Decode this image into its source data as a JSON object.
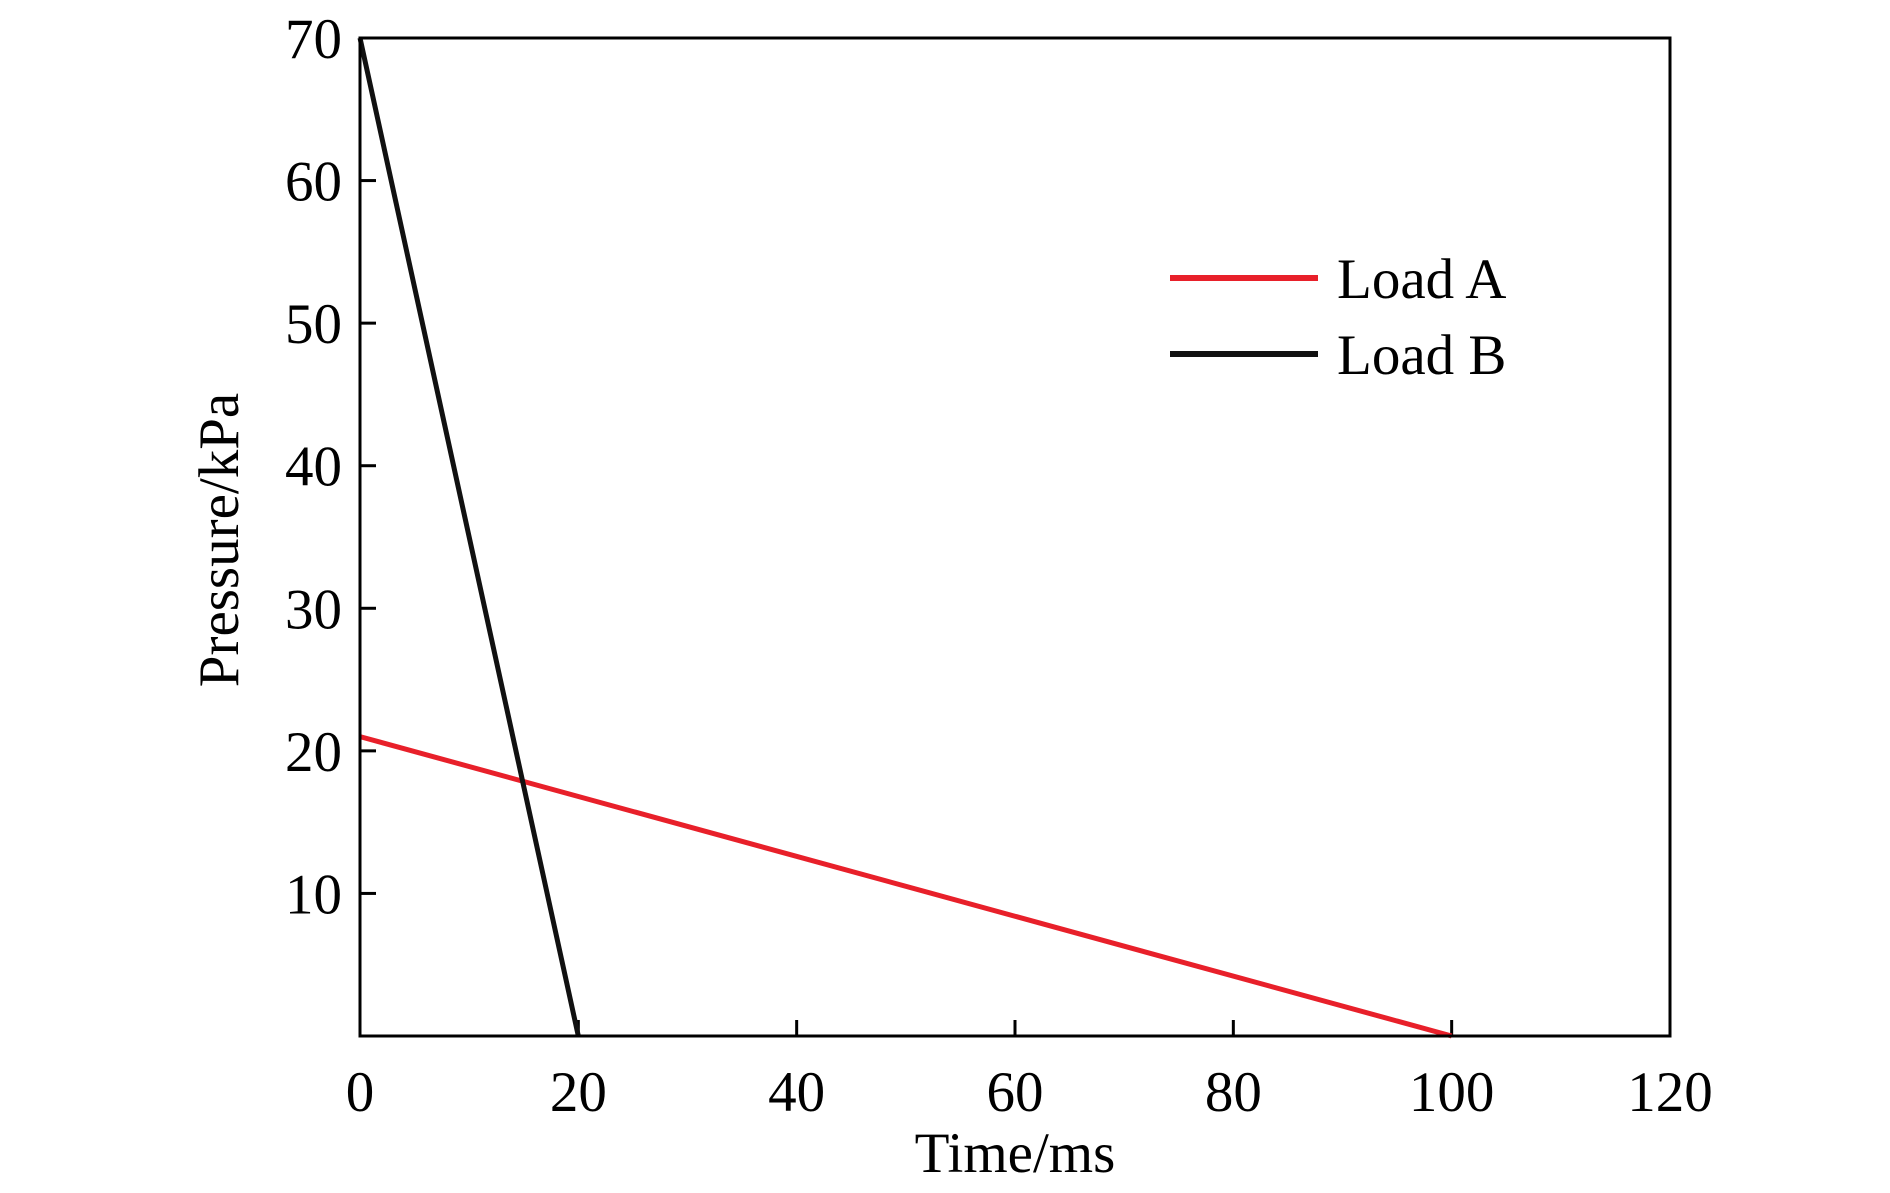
{
  "chart_data": {
    "type": "line",
    "title": "",
    "xlabel": "Time/ms",
    "ylabel": "Pressure/kPa",
    "xlim": [
      0,
      120
    ],
    "ylim": [
      0,
      70
    ],
    "x_ticks": [
      0,
      20,
      40,
      60,
      80,
      100,
      120
    ],
    "y_ticks": [
      10,
      20,
      30,
      40,
      50,
      60,
      70
    ],
    "grid": false,
    "legend_position": "top-right",
    "series": [
      {
        "name": "Load A",
        "color": "#e8202a",
        "x": [
          0,
          100
        ],
        "y": [
          21,
          0
        ]
      },
      {
        "name": "Load B",
        "color": "#111111",
        "x": [
          0,
          20
        ],
        "y": [
          70,
          0
        ]
      }
    ]
  }
}
